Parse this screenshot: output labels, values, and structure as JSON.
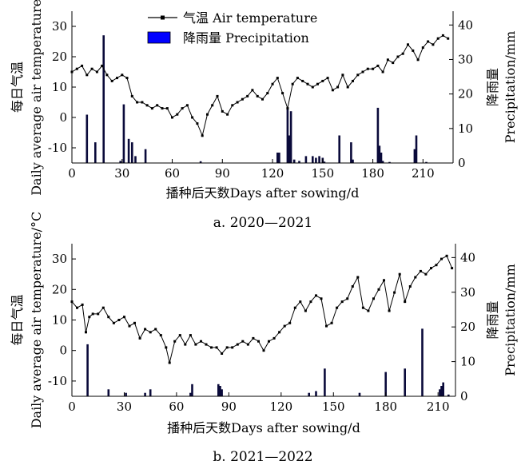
{
  "legend": {
    "temperature": "气温 Air temperature",
    "precipitation": "降雨量 Precipitation"
  },
  "colors": {
    "temperature_line": "#000000",
    "precipitation_bar": "#0a0a3a",
    "legend_bar": "#0000ff"
  },
  "chart_data": [
    {
      "type": "line+bar",
      "caption": "a. 2020—2021",
      "xlabel": "播种后天数Days after sowing/d",
      "ylabel_left": [
        "每日气温",
        "Daily average air temperature/°C"
      ],
      "ylabel_right": [
        "降雨量",
        "Precipitation/mm"
      ],
      "xlim": [
        0,
        228
      ],
      "ylim_left": [
        -15,
        35
      ],
      "ylim_right": [
        0,
        44
      ],
      "xticks": [
        0,
        30,
        60,
        90,
        120,
        150,
        180,
        210
      ],
      "yticks_left": [
        -10,
        0,
        10,
        20,
        30
      ],
      "yticks_right": [
        0,
        10,
        20,
        30,
        40
      ],
      "temperature": {
        "name": "气温 Air temperature",
        "x": [
          0,
          3,
          6,
          9,
          12,
          15,
          18,
          21,
          24,
          27,
          30,
          33,
          36,
          39,
          42,
          45,
          48,
          51,
          54,
          57,
          60,
          63,
          66,
          69,
          72,
          75,
          78,
          81,
          84,
          87,
          90,
          93,
          96,
          99,
          102,
          105,
          108,
          111,
          114,
          117,
          120,
          123,
          126,
          129,
          132,
          135,
          138,
          141,
          144,
          147,
          150,
          153,
          156,
          159,
          162,
          165,
          168,
          171,
          174,
          177,
          180,
          183,
          186,
          189,
          192,
          195,
          198,
          201,
          204,
          207,
          210,
          213,
          216,
          219,
          222,
          225
        ],
        "y": [
          15,
          16,
          17,
          14,
          16,
          15,
          17,
          14,
          12,
          13,
          14,
          13,
          7,
          5,
          5,
          4,
          3,
          4,
          3,
          3,
          0,
          1,
          3,
          4,
          0,
          -2,
          -6,
          1,
          4,
          7,
          2,
          1,
          4,
          5,
          6,
          7,
          9,
          7,
          6,
          8,
          11,
          13,
          8,
          3,
          11,
          13,
          12,
          11,
          10,
          11,
          12,
          13,
          9,
          10,
          14,
          10,
          12,
          14,
          15,
          16,
          16,
          17,
          15,
          19,
          18,
          20,
          21,
          24,
          22,
          19,
          23,
          25,
          24,
          26,
          27,
          26
        ]
      },
      "precipitation": {
        "name": "降雨量 Precipitation",
        "x": [
          9,
          14,
          19,
          29,
          31,
          34,
          36,
          38,
          44,
          77,
          123,
          124,
          129,
          130,
          131,
          133,
          136,
          140,
          144,
          146,
          148,
          150,
          151,
          160,
          167,
          168,
          183,
          184,
          185,
          186,
          190,
          205,
          206,
          212
        ],
        "y": [
          14,
          6,
          37,
          0.6,
          17,
          7,
          6,
          2,
          4,
          0.5,
          3,
          3,
          16,
          8,
          15,
          1,
          0.6,
          2,
          2,
          1.5,
          2,
          1.5,
          0.4,
          8,
          6,
          1,
          16,
          5,
          3,
          0.6,
          0.3,
          4,
          8,
          0.3
        ]
      }
    },
    {
      "type": "line+bar",
      "caption": "b. 2021—2022",
      "xlabel": "播种后天数Days after sowing/d",
      "ylabel_left": [
        "每日气温",
        "Daily average air temperature/°C"
      ],
      "ylabel_right": [
        "降雨量",
        "Precipitation/mm"
      ],
      "xlim": [
        0,
        220
      ],
      "ylim_left": [
        -15,
        35
      ],
      "ylim_right": [
        0,
        44
      ],
      "xticks": [
        0,
        30,
        60,
        90,
        120,
        150,
        180,
        210
      ],
      "yticks_left": [
        -10,
        0,
        10,
        20,
        30
      ],
      "yticks_right": [
        0,
        10,
        20,
        30,
        40
      ],
      "temperature": {
        "name": "气温 Air temperature",
        "x": [
          0,
          3,
          6,
          8,
          10,
          12,
          15,
          18,
          21,
          24,
          27,
          30,
          33,
          36,
          39,
          42,
          45,
          48,
          51,
          54,
          56,
          59,
          62,
          65,
          68,
          71,
          74,
          77,
          80,
          83,
          86,
          89,
          92,
          95,
          98,
          101,
          104,
          107,
          110,
          113,
          116,
          119,
          122,
          125,
          128,
          131,
          134,
          137,
          140,
          143,
          146,
          149,
          152,
          155,
          158,
          161,
          164,
          167,
          170,
          173,
          176,
          179,
          182,
          185,
          188,
          191,
          194,
          197,
          200,
          203,
          206,
          209,
          212,
          215,
          218
        ],
        "y": [
          16,
          14,
          15,
          6,
          11,
          12,
          12,
          14,
          11,
          9,
          10,
          11,
          8,
          9,
          4,
          7,
          6,
          7,
          5,
          1,
          -4,
          3,
          5,
          2,
          5,
          2,
          3,
          2,
          1,
          1,
          -1,
          1,
          1,
          2,
          3,
          2,
          4,
          3,
          0,
          3,
          4,
          6,
          8,
          9,
          14,
          16,
          13,
          16,
          18,
          17,
          8,
          9,
          14,
          16,
          17,
          21,
          24,
          14,
          13,
          17,
          20,
          23,
          13,
          19,
          25,
          16,
          21,
          24,
          26,
          25,
          27,
          28,
          30,
          31,
          27
        ]
      },
      "precipitation": {
        "name": "降雨量 Precipitation",
        "x": [
          9,
          21,
          31,
          42,
          45,
          68,
          69,
          84,
          85,
          86,
          136,
          140,
          145,
          165,
          180,
          191,
          201,
          211,
          212,
          213,
          216
        ],
        "y": [
          15,
          2,
          1,
          1,
          2,
          1,
          3.5,
          3.5,
          3,
          2,
          1,
          1.5,
          8,
          1,
          7,
          8,
          19.5,
          2,
          3,
          4,
          0.5
        ]
      }
    }
  ]
}
